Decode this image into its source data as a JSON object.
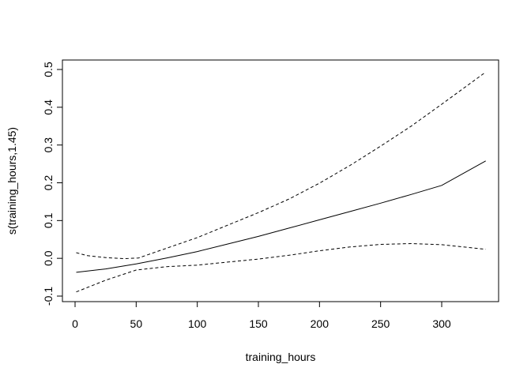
{
  "chart_data": {
    "type": "line",
    "title": "",
    "xlabel": "training_hours",
    "ylabel": "s(training_hours,1.45)",
    "xlim": [
      0,
      340
    ],
    "ylim": [
      -0.1,
      0.5
    ],
    "x_ticks": [
      0,
      50,
      100,
      150,
      200,
      250,
      300
    ],
    "x_tick_labels": [
      "0",
      "50",
      "100",
      "150",
      "200",
      "250",
      "300"
    ],
    "y_ticks": [
      -0.1,
      0.0,
      0.1,
      0.2,
      0.3,
      0.4,
      0.5
    ],
    "y_tick_labels": [
      "-0.1",
      "0.0",
      "0.1",
      "0.2",
      "0.3",
      "0.4",
      "0.5"
    ],
    "grid": false,
    "legend": "none",
    "series": [
      {
        "role": "fit",
        "style": "solid",
        "x": [
          1,
          25,
          50,
          75,
          100,
          125,
          150,
          175,
          200,
          225,
          250,
          275,
          300,
          336
        ],
        "y": [
          -0.037,
          -0.028,
          -0.015,
          0.001,
          0.018,
          0.038,
          0.058,
          0.08,
          0.102,
          0.124,
          0.146,
          0.169,
          0.193,
          0.258
        ]
      },
      {
        "role": "upper",
        "style": "dashed",
        "x": [
          1,
          10,
          25,
          40,
          52,
          75,
          100,
          125,
          150,
          175,
          200,
          225,
          250,
          275,
          300,
          336
        ],
        "y": [
          0.015,
          0.007,
          0.002,
          -0.001,
          0.001,
          0.027,
          0.055,
          0.088,
          0.121,
          0.157,
          0.199,
          0.246,
          0.297,
          0.35,
          0.408,
          0.493
        ]
      },
      {
        "role": "lower",
        "style": "dashed",
        "x": [
          1,
          25,
          50,
          75,
          100,
          125,
          150,
          175,
          200,
          225,
          250,
          275,
          300,
          336
        ],
        "y": [
          -0.089,
          -0.058,
          -0.031,
          -0.022,
          -0.018,
          -0.01,
          -0.002,
          0.008,
          0.02,
          0.03,
          0.037,
          0.039,
          0.036,
          0.024
        ]
      }
    ]
  }
}
